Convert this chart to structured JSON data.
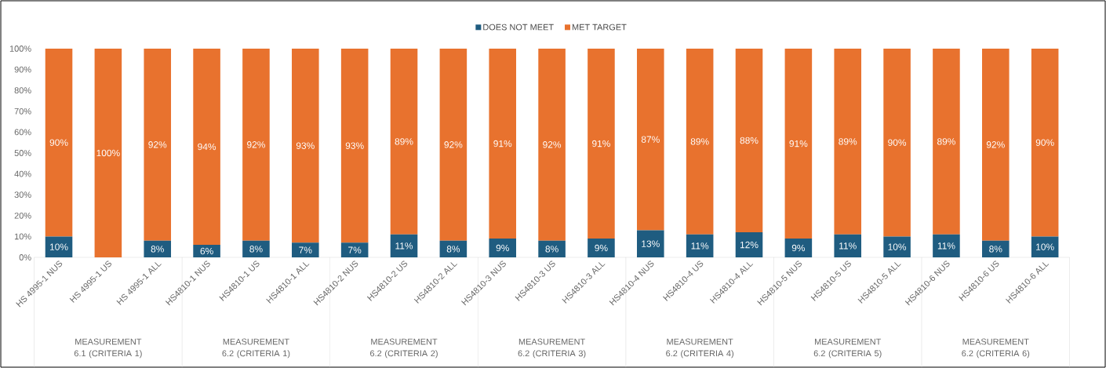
{
  "chart_data": {
    "type": "bar",
    "stacked": true,
    "legend": "top",
    "categories": [
      "HS 4995-1 NUS",
      "HS 4995-1 US",
      "HS 4995-1 ALL",
      "HS4810-1 NUS",
      "HS4810-1 US",
      "HS4810-1 ALL",
      "HS4810-2 NUS",
      "HS4810-2 US",
      "HS4810-2 ALL",
      "HS4810-3 NUS",
      "HS4810-3 US",
      "HS4810-3 ALL",
      "HS4810-4 NUS",
      "HS4810-4 US",
      "HS4810-4 ALL",
      "HS4810-5 NUS",
      "HS4810-5 US",
      "HS4810-5 ALL",
      "HS4810-6 NUS",
      "HS4810-6 US",
      "HS4810-6 ALL"
    ],
    "series": [
      {
        "name": "DOES NOT MEET",
        "color": "#1f5c80",
        "values": [
          10,
          0,
          8,
          6,
          8,
          7,
          7,
          11,
          8,
          9,
          8,
          9,
          13,
          11,
          12,
          9,
          11,
          10,
          11,
          8,
          10
        ],
        "value_labels": [
          "10%",
          null,
          "8%",
          "6%",
          "8%",
          "7%",
          "7%",
          "11%",
          "8%",
          "9%",
          "8%",
          "9%",
          "13%",
          "11%",
          "12%",
          "9%",
          "11%",
          "10%",
          "11%",
          "8%",
          "10%"
        ]
      },
      {
        "name": "MET TARGET",
        "color": "#e8722e",
        "values": [
          90,
          100,
          92,
          94,
          92,
          93,
          93,
          89,
          92,
          91,
          92,
          91,
          87,
          89,
          88,
          91,
          89,
          90,
          89,
          92,
          90
        ],
        "value_labels": [
          "90%",
          "100%",
          "92%",
          "94%",
          "92%",
          "93%",
          "93%",
          "89%",
          "92%",
          "91%",
          "92%",
          "91%",
          "87%",
          "89%",
          "88%",
          "91%",
          "89%",
          "90%",
          "89%",
          "92%",
          "90%"
        ]
      }
    ],
    "ylim": [
      0,
      100
    ],
    "yticks": [
      {
        "value": 0,
        "label": "0%"
      },
      {
        "value": 10,
        "label": "10%"
      },
      {
        "value": 20,
        "label": "20%"
      },
      {
        "value": 30,
        "label": "30%"
      },
      {
        "value": 40,
        "label": "40%"
      },
      {
        "value": 50,
        "label": "50%"
      },
      {
        "value": 60,
        "label": "60%"
      },
      {
        "value": 70,
        "label": "70%"
      },
      {
        "value": 80,
        "label": "80%"
      },
      {
        "value": 90,
        "label": "90%"
      },
      {
        "value": 100,
        "label": "100%"
      }
    ],
    "annotations": [
      "MEASUREMENT 6.1 (CRITERIA 1)",
      "MEASUREMENT 6.2 (CRITERIA 1)",
      "MEASUREMENT 6.2 (CRITERIA 2)",
      "MEASUREMENT 6.2 (CRITERIA 3)",
      "MEASUREMENT 6.2 (CRITERIA 4)",
      "MEASUREMENT 6.2 (CRITERIA 5)",
      "MEASUREMENT 6.2 (CRITERIA 6)"
    ]
  }
}
